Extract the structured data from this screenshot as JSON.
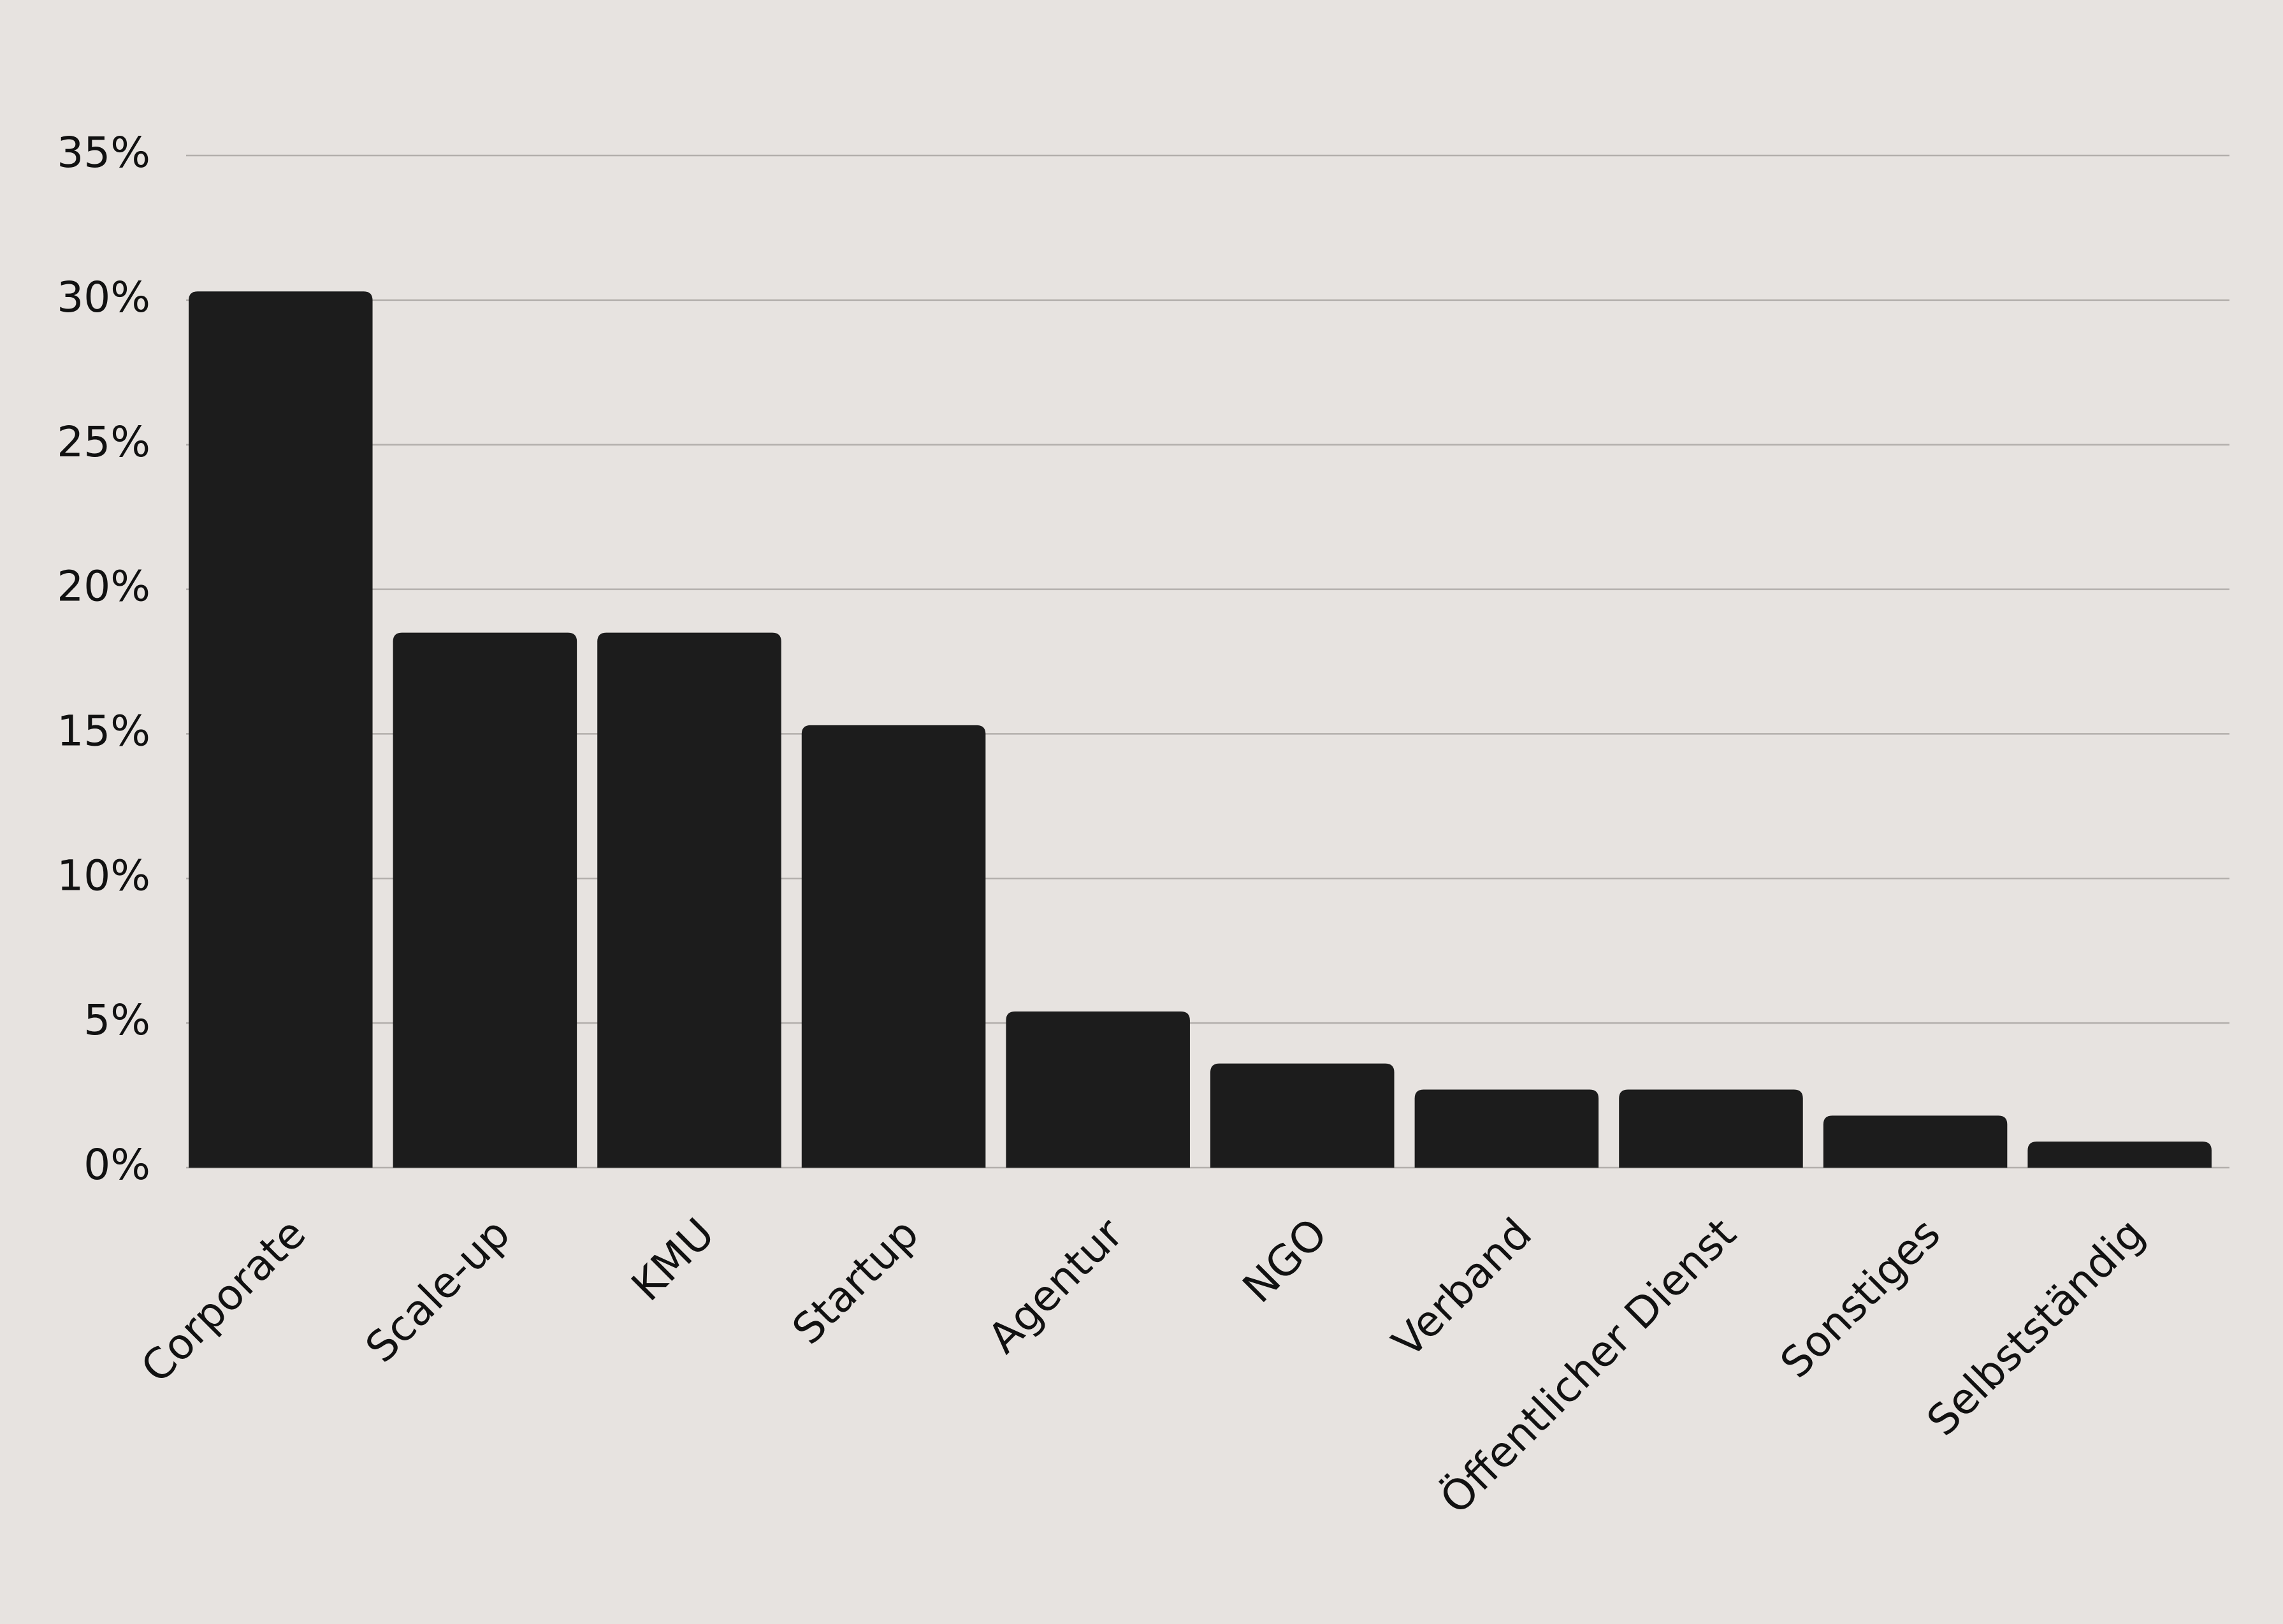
{
  "chart_data": {
    "type": "bar",
    "categories": [
      "Corporate",
      "Scale-up",
      "KMU",
      "Startup",
      "Agentur",
      "NGO",
      "Verband",
      "Öffentlicher Dienst",
      "Sonstiges",
      "Selbstständig"
    ],
    "values": [
      30.3,
      18.5,
      18.5,
      15.3,
      5.4,
      3.6,
      2.7,
      2.7,
      1.8,
      0.9
    ],
    "color": "#1c1c1c",
    "ylim": [
      0,
      35
    ],
    "yticks": [
      {
        "value": 0,
        "label": "0%"
      },
      {
        "value": 5,
        "label": "5%"
      },
      {
        "value": 10,
        "label": "10%"
      },
      {
        "value": 15,
        "label": "15%"
      },
      {
        "value": 20,
        "label": "20%"
      },
      {
        "value": 25,
        "label": "25%"
      },
      {
        "value": 30,
        "label": "30%"
      },
      {
        "value": 35,
        "label": "35%"
      }
    ],
    "grid": true
  }
}
